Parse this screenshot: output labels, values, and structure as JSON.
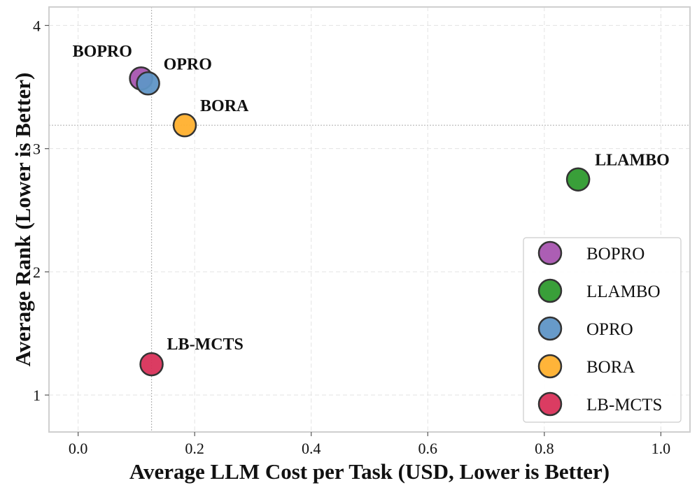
{
  "chart_data": {
    "type": "scatter",
    "title": "",
    "xlabel": "Average LLM Cost per Task (USD, Lower is Better)",
    "ylabel": "Average Rank (Lower is Better)",
    "xlim": [
      -0.05,
      1.05
    ],
    "ylim": [
      0.7,
      4.15
    ],
    "xticks": [
      0.0,
      0.2,
      0.4,
      0.6,
      0.8,
      1.0
    ],
    "xtick_labels": [
      "0.0",
      "0.2",
      "0.4",
      "0.6",
      "0.8",
      "1.0"
    ],
    "yticks": [
      1,
      2,
      3,
      4
    ],
    "ytick_labels": [
      "1",
      "2",
      "3",
      "4"
    ],
    "grid": true,
    "reference_lines": {
      "x": 0.126,
      "y": 3.19
    },
    "legend_position": "lower-right",
    "series": [
      {
        "name": "BOPRO",
        "x": 0.108,
        "y": 3.57,
        "color": "#a855b0",
        "label": "BOPRO"
      },
      {
        "name": "LLAMBO",
        "x": 0.858,
        "y": 2.75,
        "color": "#2e9a2e",
        "label": "LLAMBO"
      },
      {
        "name": "OPRO",
        "x": 0.12,
        "y": 3.53,
        "color": "#5f95c6",
        "label": "OPRO"
      },
      {
        "name": "BORA",
        "x": 0.183,
        "y": 3.19,
        "color": "#ffb02e",
        "label": "BORA"
      },
      {
        "name": "LB-MCTS",
        "x": 0.126,
        "y": 1.25,
        "color": "#d9325a",
        "label": "LB-MCTS"
      }
    ]
  }
}
